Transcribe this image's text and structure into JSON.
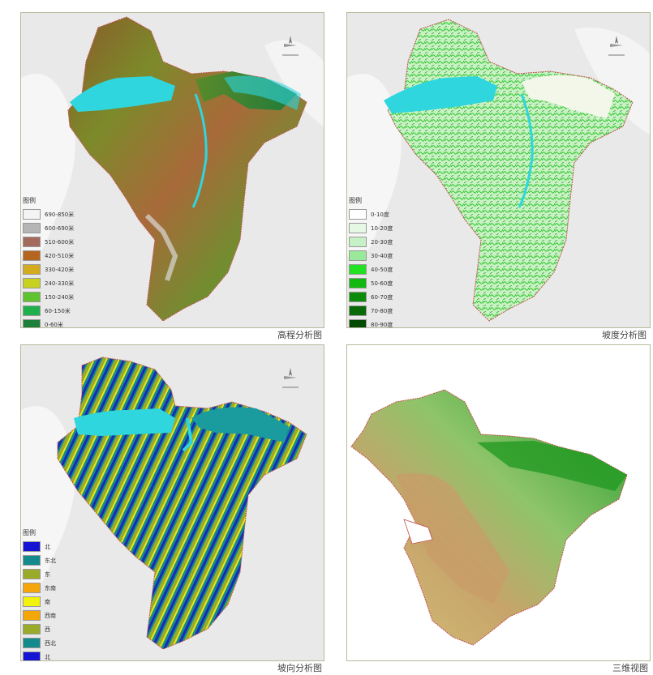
{
  "panels": {
    "elevation": {
      "caption": "高程分析图",
      "legend_title": "图例",
      "legend": [
        {
          "label": "690-850米",
          "color": "#f4f4f4"
        },
        {
          "label": "600-690米",
          "color": "#b5b5b5"
        },
        {
          "label": "510-600米",
          "color": "#a46a5c"
        },
        {
          "label": "420-510米",
          "color": "#b5651d"
        },
        {
          "label": "330-420米",
          "color": "#d4aa1e"
        },
        {
          "label": "240-330米",
          "color": "#c8d21e"
        },
        {
          "label": "150-240米",
          "color": "#5ec32e"
        },
        {
          "label": "60-150米",
          "color": "#1fb04c"
        },
        {
          "label": "0-60米",
          "color": "#1e7f3a"
        }
      ]
    },
    "slope": {
      "caption": "坡度分析图",
      "legend_title": "图例",
      "legend": [
        {
          "label": "0-10度",
          "color": "#ffffff"
        },
        {
          "label": "10-20度",
          "color": "#e4f8e4"
        },
        {
          "label": "20-30度",
          "color": "#c6f0c6"
        },
        {
          "label": "30-40度",
          "color": "#9ae89a"
        },
        {
          "label": "40-50度",
          "color": "#22e022"
        },
        {
          "label": "50-60度",
          "color": "#10b810"
        },
        {
          "label": "60-70度",
          "color": "#0a8c0a"
        },
        {
          "label": "70-80度",
          "color": "#076a07"
        },
        {
          "label": "80-90度",
          "color": "#034a03"
        }
      ]
    },
    "aspect": {
      "caption": "坡向分析图",
      "legend_title": "图例",
      "legend": [
        {
          "label": "北",
          "color": "#1414d2"
        },
        {
          "label": "东北",
          "color": "#138a8c"
        },
        {
          "label": "东",
          "color": "#9aaa2a"
        },
        {
          "label": "东南",
          "color": "#f5a70a"
        },
        {
          "label": "南",
          "color": "#f2f20a"
        },
        {
          "label": "西南",
          "color": "#f5a70a"
        },
        {
          "label": "西",
          "color": "#9aaa2a"
        },
        {
          "label": "西北",
          "color": "#138a8c"
        },
        {
          "label": "北",
          "color": "#1414d2"
        }
      ]
    },
    "view3d": {
      "caption": "三维视图"
    }
  },
  "colors": {
    "water": "#2fd6de",
    "boundary": "#c0504d",
    "background_terrain": "#e6e6e6"
  }
}
